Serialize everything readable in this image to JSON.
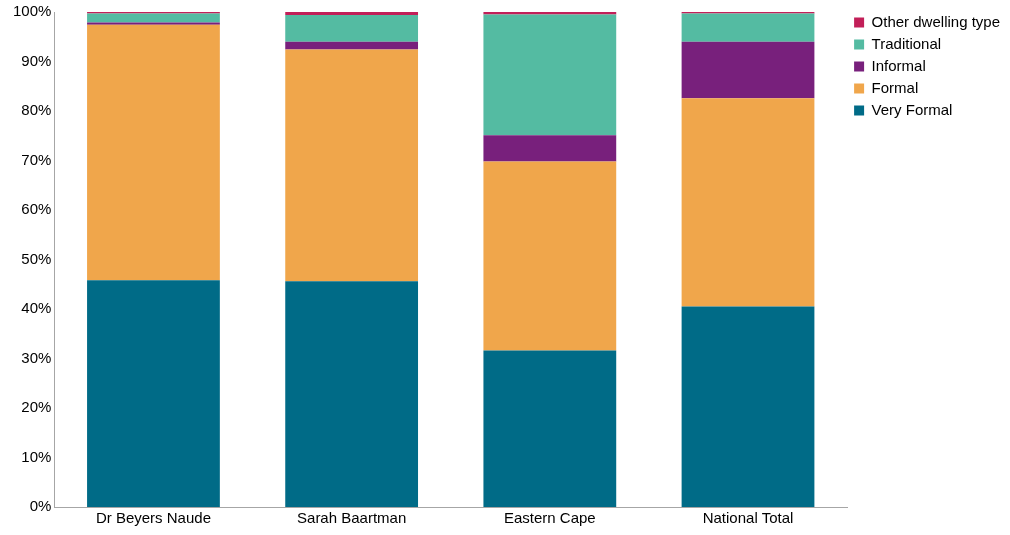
{
  "chart_data": {
    "type": "bar",
    "stacked": true,
    "categories": [
      "Dr Beyers Naude",
      "Sarah Baartman",
      "Eastern Cape",
      "National Total"
    ],
    "series": [
      {
        "name": "Very Formal",
        "color": "#006b87",
        "values": [
          45.8,
          45.6,
          31.6,
          40.5
        ]
      },
      {
        "name": "Formal",
        "color": "#f0a64b",
        "values": [
          51.6,
          46.8,
          38.2,
          42.1
        ]
      },
      {
        "name": "Informal",
        "color": "#78207c",
        "values": [
          0.5,
          1.6,
          5.3,
          11.4
        ]
      },
      {
        "name": "Traditional",
        "color": "#54bba2",
        "values": [
          1.8,
          5.4,
          24.4,
          5.7
        ]
      },
      {
        "name": "Other dwelling type",
        "color": "#c21f58",
        "values": [
          0.3,
          0.6,
          0.5,
          0.3
        ]
      }
    ],
    "ylim": [
      0,
      100
    ],
    "yticks": [
      {
        "value": 0,
        "label": "0%"
      },
      {
        "value": 10,
        "label": "10%"
      },
      {
        "value": 20,
        "label": "20%"
      },
      {
        "value": 30,
        "label": "30%"
      },
      {
        "value": 40,
        "label": "40%"
      },
      {
        "value": 50,
        "label": "50%"
      },
      {
        "value": 60,
        "label": "60%"
      },
      {
        "value": 70,
        "label": "70%"
      },
      {
        "value": 80,
        "label": "80%"
      },
      {
        "value": 90,
        "label": "90%"
      },
      {
        "value": 100,
        "label": "100%"
      }
    ],
    "grid": false,
    "legend": "top right"
  }
}
